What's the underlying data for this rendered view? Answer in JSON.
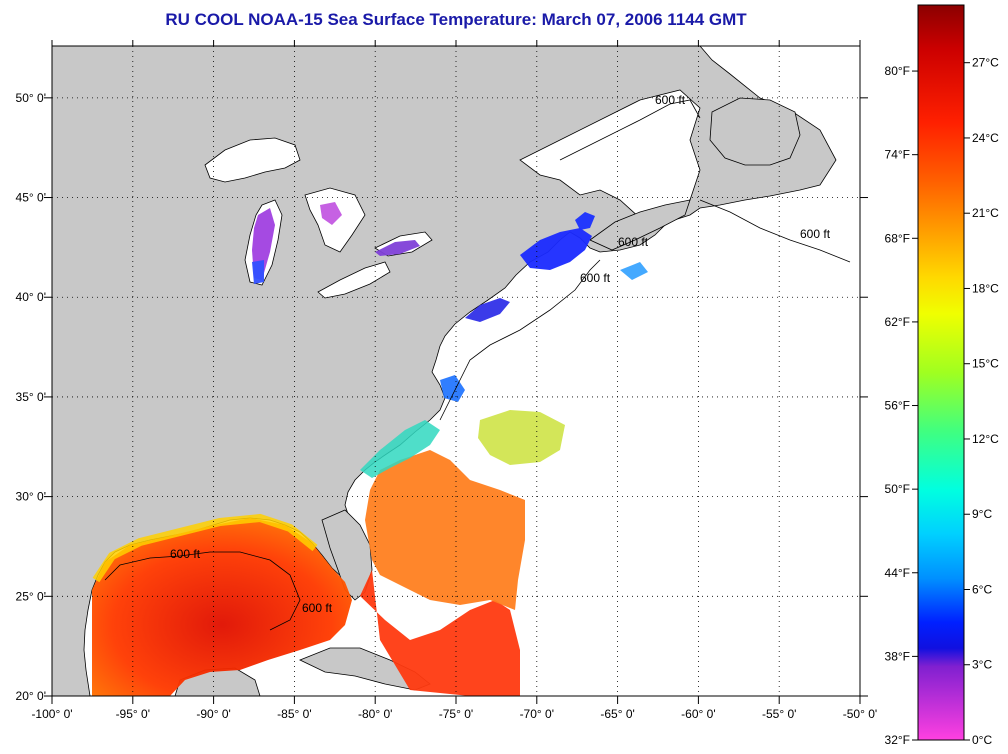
{
  "title": "RU COOL  NOAA-15  Sea Surface Temperature:  March 07, 2006 1144 GMT",
  "map": {
    "lon_labels": [
      "-100° 0'",
      "-95° 0'",
      "-90° 0'",
      "-85° 0'",
      "-80° 0'",
      "-75° 0'",
      "-70° 0'",
      "-65° 0'",
      "-60° 0'",
      "-55° 0'",
      "-50° 0'"
    ],
    "lat_labels": [
      "50° 0'",
      "45° 0'",
      "40° 0'",
      "35° 0'",
      "30° 0'",
      "25° 0'",
      "20° 0'"
    ],
    "contour_labels": [
      "600 ft",
      "600 ft",
      "600 ft",
      "600 ft",
      "600 ft",
      "600 ft"
    ],
    "colors": {
      "land": "#c8c8c8",
      "cloud": "#ffffff",
      "coast": "#000000",
      "grid": "#000000"
    }
  },
  "colorbar": {
    "fahrenheit_labels": [
      "80°F",
      "74°F",
      "68°F",
      "62°F",
      "56°F",
      "50°F",
      "44°F",
      "38°F",
      "32°F"
    ],
    "celsius_labels": [
      "27°C",
      "24°C",
      "21°C",
      "18°C",
      "15°C",
      "12°C",
      "9°C",
      "6°C",
      "3°C",
      "0°C"
    ],
    "gradient_stops": [
      "#8b0000",
      "#cc0000",
      "#ff2000",
      "#ff6000",
      "#ffa000",
      "#ffd800",
      "#f0ff00",
      "#a0ff20",
      "#40ff80",
      "#00ffe0",
      "#00d0ff",
      "#0090ff",
      "#0020ff",
      "#1010e0",
      "#8020d0",
      "#ff40e0"
    ]
  }
}
